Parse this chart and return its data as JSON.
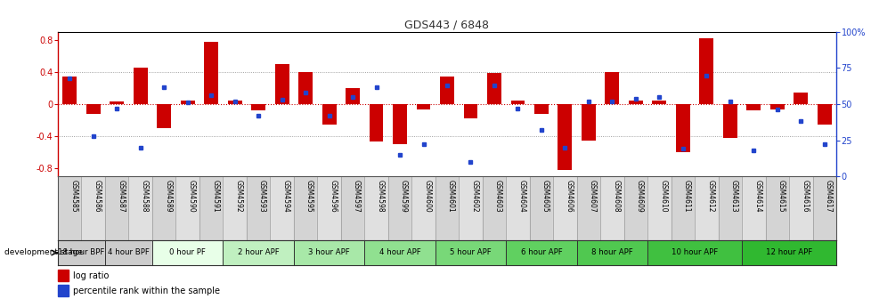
{
  "title": "GDS443 / 6848",
  "samples": [
    "GSM4585",
    "GSM4586",
    "GSM4587",
    "GSM4588",
    "GSM4589",
    "GSM4590",
    "GSM4591",
    "GSM4592",
    "GSM4593",
    "GSM4594",
    "GSM4595",
    "GSM4596",
    "GSM4597",
    "GSM4598",
    "GSM4599",
    "GSM4600",
    "GSM4601",
    "GSM4602",
    "GSM4603",
    "GSM4604",
    "GSM4605",
    "GSM4606",
    "GSM4607",
    "GSM4608",
    "GSM4609",
    "GSM4610",
    "GSM4611",
    "GSM4612",
    "GSM4613",
    "GSM4614",
    "GSM4615",
    "GSM4616",
    "GSM4617"
  ],
  "log_ratio": [
    0.35,
    -0.12,
    0.03,
    0.46,
    -0.3,
    0.04,
    0.78,
    0.05,
    -0.08,
    0.5,
    0.4,
    -0.25,
    0.2,
    -0.47,
    -0.5,
    -0.07,
    0.34,
    -0.18,
    0.39,
    0.05,
    -0.12,
    -0.82,
    -0.46,
    0.4,
    0.05,
    0.04,
    -0.6,
    0.82,
    -0.42,
    -0.08,
    -0.07,
    0.14,
    -0.26
  ],
  "percentile": [
    68,
    28,
    47,
    20,
    62,
    51,
    56,
    52,
    42,
    53,
    58,
    42,
    55,
    62,
    15,
    22,
    63,
    10,
    63,
    47,
    32,
    20,
    52,
    52,
    54,
    55,
    19,
    70,
    52,
    18,
    46,
    38,
    22
  ],
  "stage_groups": [
    {
      "label": "18 hour BPF",
      "start": 0,
      "end": 2,
      "color": "#cccccc"
    },
    {
      "label": "4 hour BPF",
      "start": 2,
      "end": 4,
      "color": "#cccccc"
    },
    {
      "label": "0 hour PF",
      "start": 4,
      "end": 7,
      "color": "#e8ffe8"
    },
    {
      "label": "2 hour APF",
      "start": 7,
      "end": 10,
      "color": "#c0f0c0"
    },
    {
      "label": "3 hour APF",
      "start": 10,
      "end": 13,
      "color": "#a8e8a8"
    },
    {
      "label": "4 hour APF",
      "start": 13,
      "end": 16,
      "color": "#90e090"
    },
    {
      "label": "5 hour APF",
      "start": 16,
      "end": 19,
      "color": "#78d878"
    },
    {
      "label": "6 hour APF",
      "start": 19,
      "end": 22,
      "color": "#60d060"
    },
    {
      "label": "8 hour APF",
      "start": 22,
      "end": 25,
      "color": "#50c850"
    },
    {
      "label": "10 hour APF",
      "start": 25,
      "end": 29,
      "color": "#40c040"
    },
    {
      "label": "12 hour APF",
      "start": 29,
      "end": 33,
      "color": "#30b830"
    }
  ],
  "ylim_left": [
    -0.9,
    0.9
  ],
  "ylim_right": [
    0,
    100
  ],
  "bar_color": "#cc0000",
  "dot_color": "#2244cc",
  "zero_line_color": "#cc0000",
  "yticks_left": [
    -0.8,
    -0.4,
    0.0,
    0.4,
    0.8
  ],
  "yticks_right": [
    0,
    25,
    50,
    75,
    100
  ],
  "sample_box_color_odd": "#d4d4d4",
  "sample_box_color_even": "#e0e0e0",
  "stage_border_color": "#555555",
  "legend_red": "#cc0000",
  "legend_blue": "#2244cc"
}
